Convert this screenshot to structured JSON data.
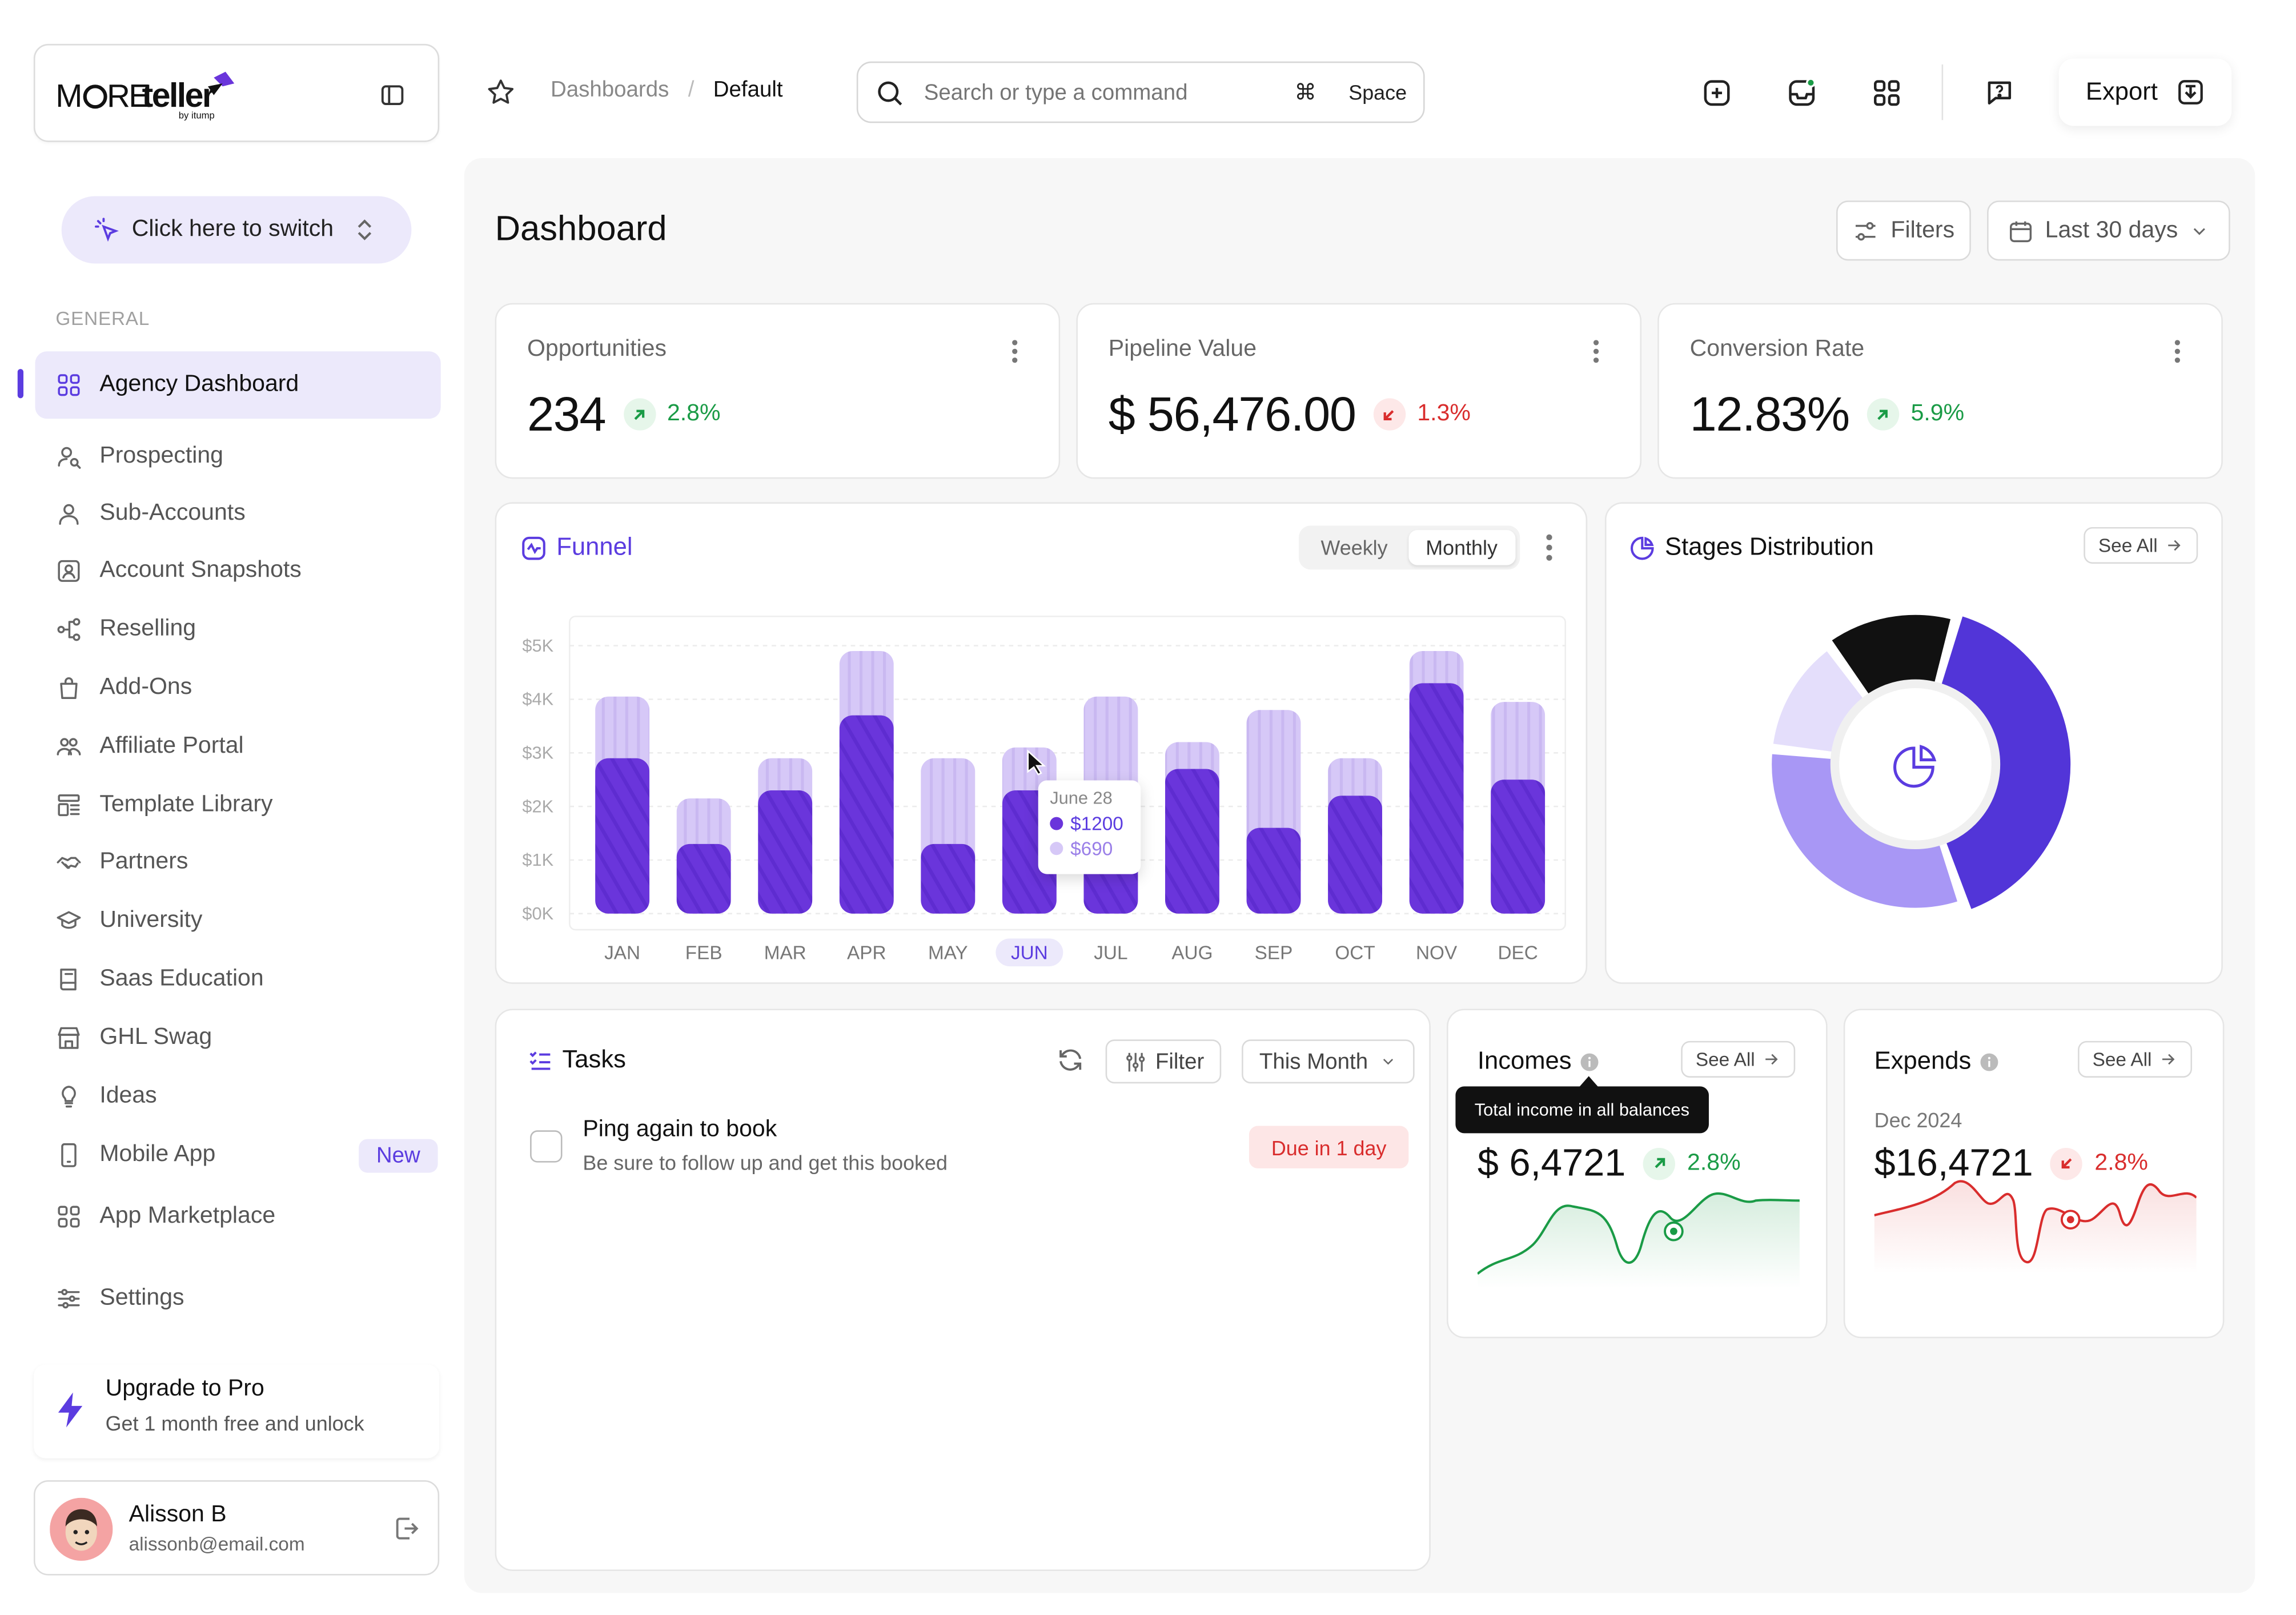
{
  "brand": {
    "logo_text": "MORE teller",
    "logo_sub": "by itump"
  },
  "sidebar": {
    "switch_label": "Click here to switch",
    "section_general": "GENERAL",
    "items": [
      {
        "label": "Agency Dashboard",
        "icon": "grid-icon"
      },
      {
        "label": "Prospecting",
        "icon": "user-search-icon"
      },
      {
        "label": "Sub-Accounts",
        "icon": "user-icon"
      },
      {
        "label": "Account Snapshots",
        "icon": "contact-icon"
      },
      {
        "label": "Reselling",
        "icon": "share-icon"
      },
      {
        "label": "Add-Ons",
        "icon": "bag-icon"
      },
      {
        "label": "Affiliate Portal",
        "icon": "users-icon"
      },
      {
        "label": "Template Library",
        "icon": "template-icon"
      },
      {
        "label": "Partners",
        "icon": "handshake-icon"
      },
      {
        "label": "University",
        "icon": "graduation-icon"
      },
      {
        "label": "Saas Education",
        "icon": "book-icon"
      },
      {
        "label": "GHL Swag",
        "icon": "store-icon"
      },
      {
        "label": "Ideas",
        "icon": "bulb-icon"
      },
      {
        "label": "Mobile App",
        "icon": "phone-icon",
        "badge": "New"
      },
      {
        "label": "App Marketplace",
        "icon": "apps-icon"
      },
      {
        "label": "Settings",
        "icon": "sliders-icon"
      }
    ],
    "upgrade": {
      "title": "Upgrade to Pro",
      "subtitle": "Get 1 month free and unlock"
    },
    "user": {
      "name": "Alisson B",
      "email": "alissonb@email.com"
    }
  },
  "topbar": {
    "breadcrumb_parent": "Dashboards",
    "breadcrumb_sep": "/",
    "breadcrumb_current": "Default",
    "search_placeholder": "Search or type a command",
    "shortcut_symbol": "⌘",
    "shortcut_key": "Space",
    "export_label": "Export"
  },
  "page": {
    "title": "Dashboard",
    "filters_label": "Filters",
    "range_label": "Last 30 days"
  },
  "kpis": [
    {
      "label": "Opportunities",
      "value": "234",
      "change": "2.8%",
      "trend": "up"
    },
    {
      "label": "Pipeline Value",
      "value": "$ 56,476.00",
      "change": "1.3%",
      "trend": "down"
    },
    {
      "label": "Conversion Rate",
      "value": "12.83%",
      "change": "5.9%",
      "trend": "up"
    }
  ],
  "funnel": {
    "title": "Funnel",
    "tab_weekly": "Weekly",
    "tab_monthly": "Monthly",
    "tooltip": {
      "date": "June 28",
      "primary": "$1200",
      "secondary": "$690"
    }
  },
  "stages": {
    "title": "Stages Distribution",
    "see_all": "See All"
  },
  "tasks": {
    "title": "Tasks",
    "filter_label": "Filter",
    "period_label": "This Month",
    "items": [
      {
        "title": "Ping again to book",
        "subtitle": "Be sure to follow up and get this booked",
        "due": "Due in 1 day"
      }
    ]
  },
  "incomes": {
    "title": "Incomes",
    "see_all": "See All",
    "tooltip": "Total income in all balances",
    "value": "$ 6,4721",
    "change": "2.8%"
  },
  "expends": {
    "title": "Expends",
    "see_all": "See All",
    "period": "Dec 2024",
    "value": "$16,4721",
    "change": "2.8%"
  },
  "colors": {
    "accent": "#5b3ce0",
    "bar_primary": "#6a35db",
    "bar_secondary": "#d3c4f6",
    "up": "#1a9b46",
    "down": "#d92d2d"
  },
  "chart_data": [
    {
      "type": "bar",
      "title": "Funnel",
      "categories": [
        "JAN",
        "FEB",
        "MAR",
        "APR",
        "MAY",
        "JUN",
        "JUL",
        "AUG",
        "SEP",
        "OCT",
        "NOV",
        "DEC"
      ],
      "y_ticks": [
        "$0K",
        "$1K",
        "$2K",
        "$3K",
        "$4K",
        "$5K"
      ],
      "ylim": [
        0,
        5000
      ],
      "highlighted_category": "JUN",
      "series": [
        {
          "values": [
            2900,
            1300,
            2300,
            3700,
            1300,
            2300,
            2200,
            2700,
            1600,
            2200,
            4300,
            2500
          ]
        },
        {
          "values": [
            4050,
            2150,
            2900,
            4900,
            2900,
            3100,
            4050,
            3200,
            3800,
            2900,
            4900,
            3950
          ]
        }
      ],
      "grid": true
    },
    {
      "type": "pie",
      "title": "Stages Distribution",
      "style": "donut",
      "values": [
        38,
        30,
        12,
        13
      ],
      "colors": [
        "#5235d8",
        "#a897f5",
        "#e4defb",
        "#111111"
      ]
    }
  ]
}
